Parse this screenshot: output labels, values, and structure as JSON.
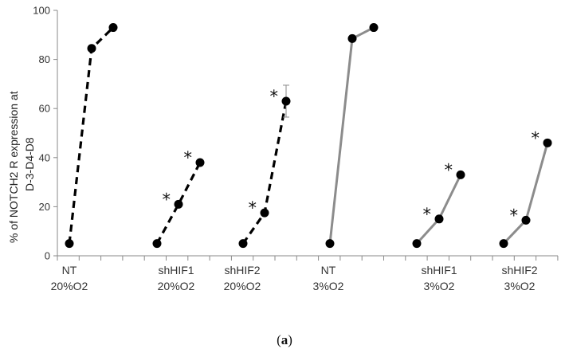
{
  "chart_data": {
    "type": "line",
    "ylabel_line1": "% of NOTCH2 R expression at",
    "ylabel_line2": "D-3-D4-D8",
    "ylim": [
      0,
      100
    ],
    "yticks": [
      "0",
      "20",
      "40",
      "60",
      "80",
      "100"
    ],
    "grid": false,
    "caption_left": "(",
    "caption_letter": "a",
    "caption_right": ")",
    "groups": [
      {
        "line1": "NT",
        "line2": "20%O2",
        "style": "dashed",
        "color": "#000000",
        "values": [
          5,
          84.5,
          93
        ],
        "significant": [
          false,
          false,
          false
        ],
        "error": [
          null,
          null,
          null
        ]
      },
      {
        "line1": "shHIF1",
        "line2": "20%O2",
        "style": "dashed",
        "color": "#000000",
        "values": [
          5,
          21,
          38
        ],
        "significant": [
          false,
          true,
          true
        ],
        "error": [
          null,
          null,
          null
        ]
      },
      {
        "line1": "shHIF2",
        "line2": "20%O2",
        "style": "dashed",
        "color": "#000000",
        "values": [
          5,
          17.5,
          63
        ],
        "significant": [
          false,
          true,
          true
        ],
        "error": [
          null,
          null,
          6.5
        ]
      },
      {
        "line1": "NT",
        "line2": "3%O2",
        "style": "solid",
        "color": "#8c8c8c",
        "values": [
          5,
          88.5,
          93
        ],
        "significant": [
          false,
          false,
          false
        ],
        "error": [
          null,
          null,
          null
        ]
      },
      {
        "line1": "shHIF1",
        "line2": "3%O2",
        "style": "solid",
        "color": "#8c8c8c",
        "values": [
          5,
          15,
          33
        ],
        "significant": [
          false,
          true,
          true
        ],
        "error": [
          null,
          null,
          null
        ]
      },
      {
        "line1": "shHIF2",
        "line2": "3%O2",
        "style": "solid",
        "color": "#8c8c8c",
        "values": [
          5,
          14.5,
          46
        ],
        "significant": [
          false,
          true,
          true
        ],
        "error": [
          null,
          null,
          null
        ]
      }
    ],
    "significance_marker": "*"
  }
}
